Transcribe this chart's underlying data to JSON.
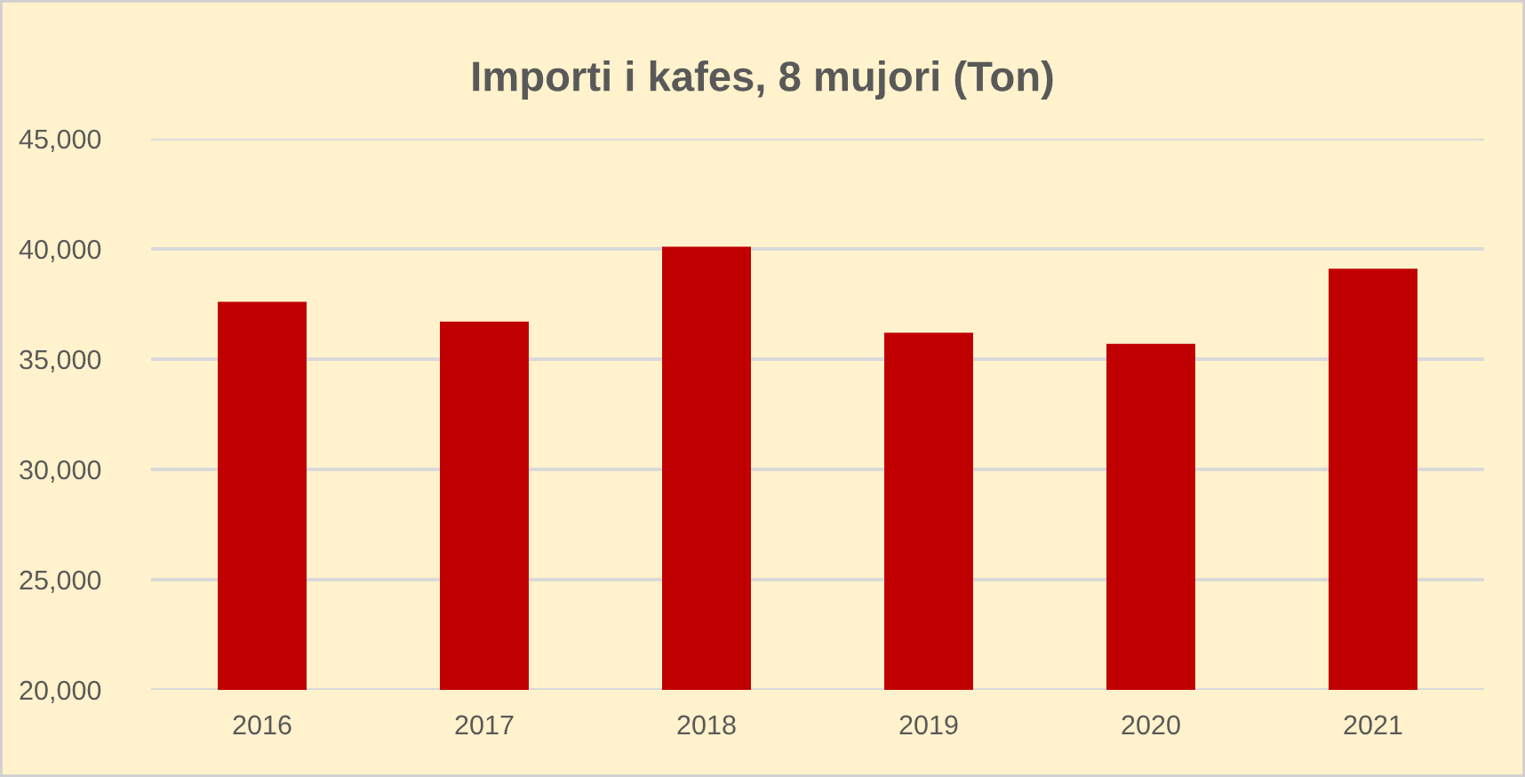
{
  "chart_data": {
    "type": "bar",
    "title": "Importi i kafes, 8 mujori (Ton)",
    "categories": [
      "2016",
      "2017",
      "2018",
      "2019",
      "2020",
      "2021"
    ],
    "values": [
      37600,
      36700,
      40100,
      36200,
      35700,
      39100
    ],
    "color": "#c00000",
    "ylim": [
      20000,
      45000
    ],
    "yticks": [
      {
        "value": 20000,
        "label": "20,000"
      },
      {
        "value": 25000,
        "label": "25,000"
      },
      {
        "value": 30000,
        "label": "30,000"
      },
      {
        "value": 35000,
        "label": "35,000"
      },
      {
        "value": 40000,
        "label": "40,000"
      },
      {
        "value": 45000,
        "label": "45,000"
      }
    ],
    "grid": "y",
    "legend": false
  }
}
